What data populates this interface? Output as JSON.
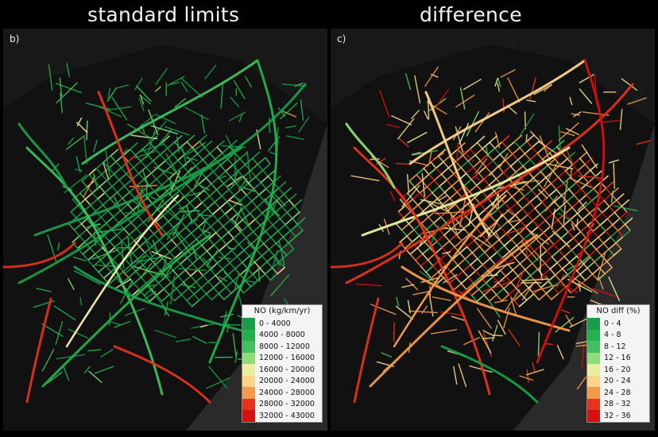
{
  "panels": [
    {
      "title": "standard limits",
      "label": "b)",
      "legend": {
        "title": "NO (kg/km/yr)",
        "items": [
          {
            "label": "0 - 4000",
            "color": "#1a9c48"
          },
          {
            "label": "4000 - 8000",
            "color": "#22b14c"
          },
          {
            "label": "8000 - 12000",
            "color": "#40c060"
          },
          {
            "label": "12000 - 16000",
            "color": "#8fdc7a"
          },
          {
            "label": "16000 - 20000",
            "color": "#e8f0a0"
          },
          {
            "label": "20000 - 24000",
            "color": "#fbd48a"
          },
          {
            "label": "24000 - 28000",
            "color": "#f39a4c"
          },
          {
            "label": "28000 - 32000",
            "color": "#e8321e"
          },
          {
            "label": "32000 - 43000",
            "color": "#d60f0f"
          }
        ]
      }
    },
    {
      "title": "difference",
      "label": "c)",
      "legend": {
        "title": "NO diff (%)",
        "items": [
          {
            "label": "0 - 4",
            "color": "#1a9c48"
          },
          {
            "label": "4 - 8",
            "color": "#22b14c"
          },
          {
            "label": "8 - 12",
            "color": "#40c060"
          },
          {
            "label": "12 - 16",
            "color": "#8fdc7a"
          },
          {
            "label": "16 - 20",
            "color": "#e8f0a0"
          },
          {
            "label": "20 - 24",
            "color": "#fbd48a"
          },
          {
            "label": "24 - 28",
            "color": "#f39a4c"
          },
          {
            "label": "28 - 32",
            "color": "#e8321e"
          },
          {
            "label": "32 - 36",
            "color": "#d60f0f"
          }
        ]
      }
    }
  ]
}
